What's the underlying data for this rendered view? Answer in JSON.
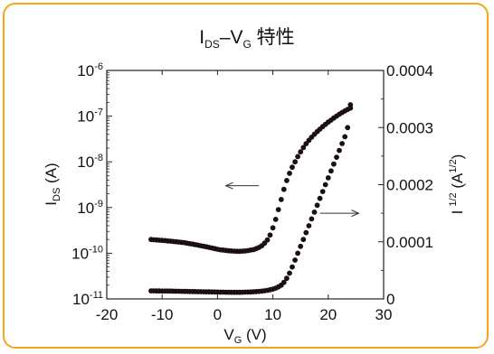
{
  "chart_data": {
    "type": "scatter",
    "title_parts": [
      "I",
      "DS",
      "–V",
      "G",
      " 特性"
    ],
    "xlabel_parts": [
      "V",
      "G",
      " (V)"
    ],
    "ylabel_left_parts": [
      "I",
      "DS",
      " (A)"
    ],
    "ylabel_right_parts": [
      "I",
      "1/2",
      " (A",
      "1/2",
      ")"
    ],
    "x_ticks": [
      "-20",
      "-10",
      "0",
      "10",
      "20",
      "30"
    ],
    "y_left_ticks": [
      {
        "base": "10",
        "exp": "-6"
      },
      {
        "base": "10",
        "exp": "-7"
      },
      {
        "base": "10",
        "exp": "-8"
      },
      {
        "base": "10",
        "exp": "-9"
      },
      {
        "base": "10",
        "exp": "-10"
      },
      {
        "base": "10",
        "exp": "-11"
      }
    ],
    "y_right_ticks": [
      "0.0004",
      "0.0003",
      "0.0002",
      "0.0001",
      "0"
    ],
    "xlim": [
      -20,
      30
    ],
    "ylim_left": [
      1e-11,
      1e-06
    ],
    "y_left_scale": "log",
    "ylim_right": [
      0,
      0.0004
    ],
    "grid": false,
    "legend": "none",
    "series": [
      {
        "axis": "left",
        "x": [
          -12,
          -11.5,
          -11,
          -10.5,
          -10,
          -9.5,
          -9,
          -8.5,
          -8,
          -7.5,
          -7,
          -6.5,
          -6,
          -5.5,
          -5,
          -4.5,
          -4,
          -3.5,
          -3,
          -2.5,
          -2,
          -1.5,
          -1,
          -0.5,
          0,
          0.5,
          1,
          1.5,
          2,
          2.5,
          3,
          3.5,
          4,
          4.5,
          5,
          5.5,
          6,
          6.5,
          7,
          7.5,
          8,
          8.5,
          9,
          9.5,
          10,
          10.5,
          11,
          11.5,
          12,
          12.5,
          13,
          13.5,
          14,
          14.5,
          15,
          15.5,
          16,
          16.5,
          17,
          17.5,
          18,
          18.5,
          19,
          19.5,
          20,
          20.5,
          21,
          21.5,
          22,
          22.5,
          23,
          23.5,
          24
        ],
        "y": [
          2e-10,
          1.97e-10,
          1.95e-10,
          1.93e-10,
          1.91e-10,
          1.89e-10,
          1.86e-10,
          1.84e-10,
          1.81e-10,
          1.78e-10,
          1.76e-10,
          1.73e-10,
          1.7e-10,
          1.66e-10,
          1.62e-10,
          1.58e-10,
          1.54e-10,
          1.5e-10,
          1.46e-10,
          1.42e-10,
          1.38e-10,
          1.34e-10,
          1.3e-10,
          1.26e-10,
          1.22e-10,
          1.19e-10,
          1.17e-10,
          1.15e-10,
          1.13e-10,
          1.12e-10,
          1.11e-10,
          1.1e-10,
          1.1e-10,
          1.11e-10,
          1.12e-10,
          1.14e-10,
          1.17e-10,
          1.2e-10,
          1.26e-10,
          1.34e-10,
          1.46e-10,
          1.66e-10,
          1.95e-10,
          2.5e-10,
          3.6e-10,
          5.5e-10,
          9e-10,
          1.5e-09,
          2.5e-09,
          3.9e-09,
          5.6e-09,
          7.6e-09,
          1e-08,
          1.3e-08,
          1.65e-08,
          2.05e-08,
          2.5e-08,
          2.95e-08,
          3.45e-08,
          4e-08,
          4.6e-08,
          5.2e-08,
          5.9e-08,
          6.6e-08,
          7.4e-08,
          8.2e-08,
          9.1e-08,
          1e-07,
          1.1e-07,
          1.2e-07,
          1.3e-07,
          1.4e-07,
          1.5e-07
        ]
      },
      {
        "axis": "right",
        "x": [
          -12,
          -11.5,
          -11,
          -10.5,
          -10,
          -9.5,
          -9,
          -8.5,
          -8,
          -7.5,
          -7,
          -6.5,
          -6,
          -5.5,
          -5,
          -4.5,
          -4,
          -3.5,
          -3,
          -2.5,
          -2,
          -1.5,
          -1,
          -0.5,
          0,
          0.5,
          1,
          1.5,
          2,
          2.5,
          3,
          3.5,
          4,
          4.5,
          5,
          5.5,
          6,
          6.5,
          7,
          7.5,
          8,
          8.5,
          9,
          9.5,
          10,
          10.5,
          11,
          11.5,
          12,
          12.5,
          13,
          13.5,
          14,
          14.5,
          15,
          15.5,
          16,
          16.5,
          17,
          17.5,
          18,
          18.5,
          19,
          19.5,
          20,
          20.5,
          21,
          21.5,
          22,
          22.5,
          23,
          23.5,
          24
        ],
        "y": [
          1.4e-05,
          1.4e-05,
          1.39e-05,
          1.39e-05,
          1.38e-05,
          1.38e-05,
          1.37e-05,
          1.37e-05,
          1.36e-05,
          1.35e-05,
          1.34e-05,
          1.33e-05,
          1.32e-05,
          1.31e-05,
          1.3e-05,
          1.29e-05,
          1.28e-05,
          1.27e-05,
          1.26e-05,
          1.25e-05,
          1.24e-05,
          1.23e-05,
          1.22e-05,
          1.21e-05,
          1.2e-05,
          1.19e-05,
          1.18e-05,
          1.17e-05,
          1.17e-05,
          1.16e-05,
          1.16e-05,
          1.16e-05,
          1.16e-05,
          1.17e-05,
          1.18e-05,
          1.2e-05,
          1.22e-05,
          1.25e-05,
          1.28e-05,
          1.32e-05,
          1.36e-05,
          1.42e-05,
          1.5e-05,
          1.6e-05,
          1.72e-05,
          1.88e-05,
          2.1e-05,
          2.4e-05,
          2.9e-05,
          3.6e-05,
          4.5e-05,
          5.6e-05,
          6.8e-05,
          8e-05,
          9.2e-05,
          0.000104,
          0.000116,
          0.000128,
          0.00014,
          0.000152,
          0.000164,
          0.000176,
          0.000188,
          0.0002,
          0.000212,
          0.000224,
          0.000236,
          0.000248,
          0.00026,
          0.000272,
          0.000284,
          0.0003,
          0.00034
        ]
      }
    ],
    "arrows": [
      {
        "direction": "left",
        "x_from": 7.5,
        "x_to": 1.5,
        "y_left": 3e-09
      },
      {
        "direction": "right",
        "x_from": 18.5,
        "x_to": 25.5,
        "y_right": 0.00015
      }
    ]
  }
}
